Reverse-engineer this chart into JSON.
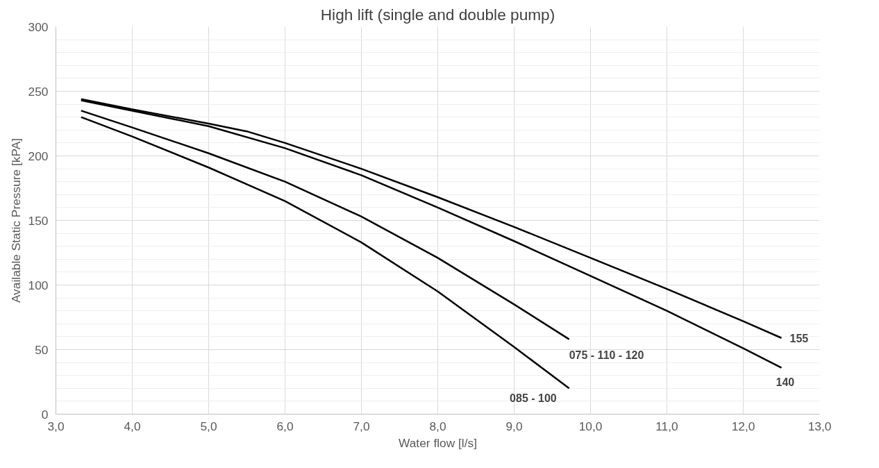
{
  "chart_data": {
    "type": "line",
    "title": "High lift (single and double pump)",
    "xlabel": "Water flow [l/s]",
    "ylabel": "Available Static Pressure [kPA]",
    "xlim": [
      3,
      13
    ],
    "ylim": [
      0,
      300
    ],
    "xticks": [
      {
        "value": 3,
        "label": "3,0"
      },
      {
        "value": 4,
        "label": "4,0"
      },
      {
        "value": 5,
        "label": "5,0"
      },
      {
        "value": 6,
        "label": "6,0"
      },
      {
        "value": 7,
        "label": "7,0"
      },
      {
        "value": 8,
        "label": "8,0"
      },
      {
        "value": 9,
        "label": "9,0"
      },
      {
        "value": 10,
        "label": "10,0"
      },
      {
        "value": 11,
        "label": "11,0"
      },
      {
        "value": 12,
        "label": "12,0"
      },
      {
        "value": 13,
        "label": "13,0"
      }
    ],
    "yticks": [
      0,
      {
        "value": 10,
        "label": null
      },
      {
        "value": 20,
        "label": null
      },
      {
        "value": 30,
        "label": null
      },
      {
        "value": 40,
        "label": null
      },
      50,
      {
        "value": 60,
        "label": null
      },
      {
        "value": 70,
        "label": null
      },
      {
        "value": 80,
        "label": null
      },
      {
        "value": 90,
        "label": null
      },
      100,
      {
        "value": 110,
        "label": null
      },
      {
        "value": 120,
        "label": null
      },
      {
        "value": 130,
        "label": null
      },
      {
        "value": 140,
        "label": null
      },
      150,
      {
        "value": 160,
        "label": null
      },
      {
        "value": 170,
        "label": null
      },
      {
        "value": 180,
        "label": null
      },
      {
        "value": 190,
        "label": null
      },
      200,
      {
        "value": 210,
        "label": null
      },
      {
        "value": 220,
        "label": null
      },
      {
        "value": 230,
        "label": null
      },
      {
        "value": 240,
        "label": null
      },
      250,
      {
        "value": 260,
        "label": null
      },
      {
        "value": 270,
        "label": null
      },
      {
        "value": 280,
        "label": null
      },
      {
        "value": 290,
        "label": null
      },
      300
    ],
    "grid": true,
    "marker": "none",
    "line_style": "solid",
    "series": [
      {
        "name": "155",
        "color": "#000000",
        "x": [
          3.33,
          4,
          5,
          5.5,
          6,
          7,
          8,
          9,
          10,
          11,
          12,
          12.5
        ],
        "values": [
          244,
          236,
          225,
          219,
          210,
          190,
          168,
          145,
          121,
          97,
          72,
          59
        ]
      },
      {
        "name": "140",
        "color": "#000000",
        "x": [
          3.33,
          4,
          5,
          6,
          7,
          8,
          9,
          10,
          11,
          12,
          12.5
        ],
        "values": [
          243,
          235,
          223,
          206,
          185,
          160,
          134,
          107,
          80,
          51,
          36
        ]
      },
      {
        "name": "075 - 110 - 120",
        "color": "#000000",
        "x": [
          3.33,
          4,
          5,
          6,
          7,
          8,
          9,
          9.72
        ],
        "values": [
          235,
          222,
          202,
          180,
          153,
          121,
          85,
          58
        ]
      },
      {
        "name": "085 - 100",
        "color": "#000000",
        "x": [
          3.33,
          4,
          5,
          6,
          7,
          8,
          9,
          9.72
        ],
        "values": [
          230,
          215,
          191,
          165,
          133,
          95,
          52,
          20
        ]
      }
    ]
  }
}
